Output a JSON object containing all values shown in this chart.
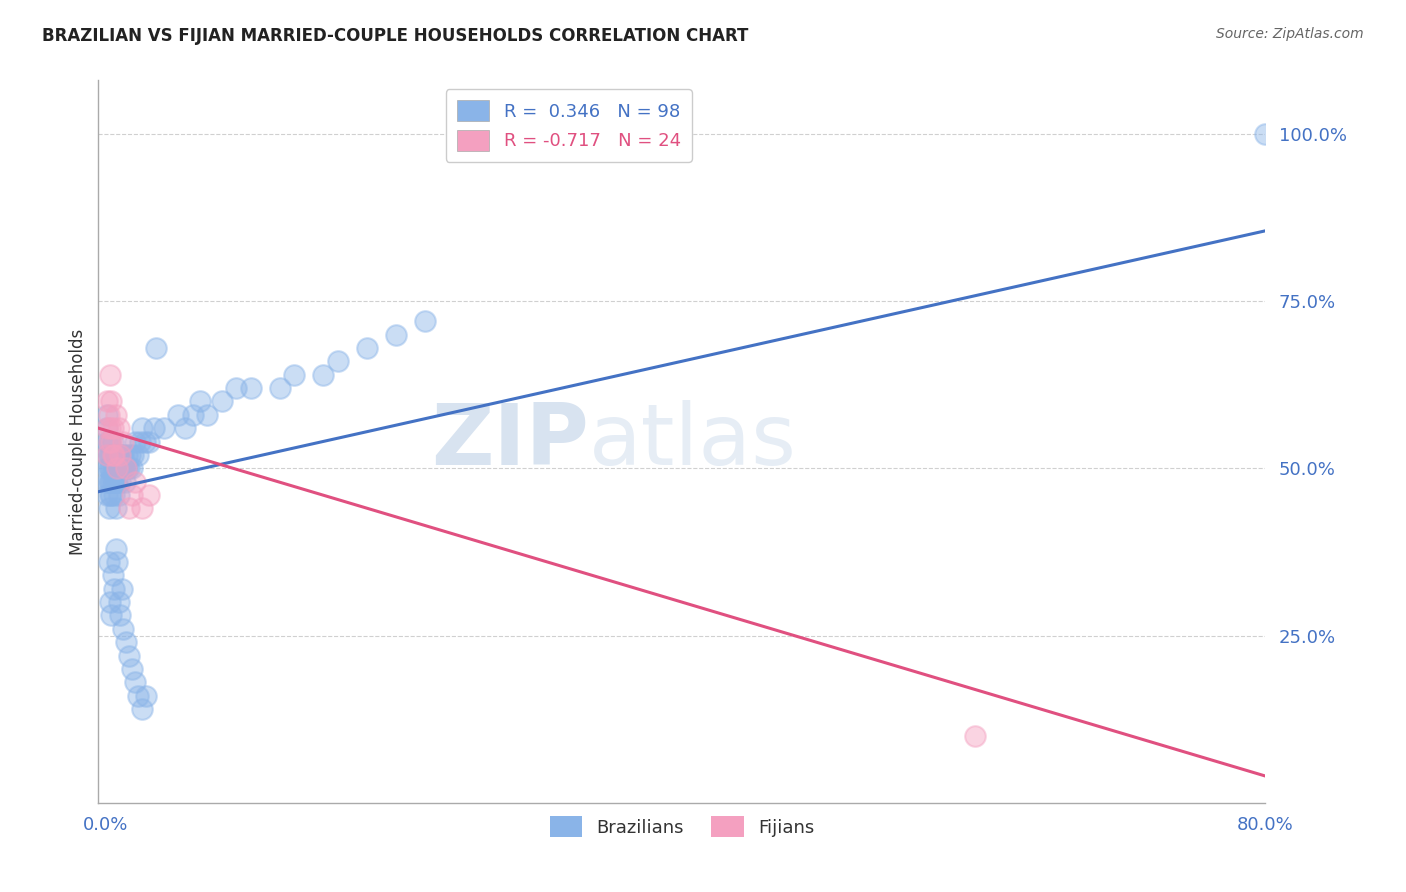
{
  "title": "BRAZILIAN VS FIJIAN MARRIED-COUPLE HOUSEHOLDS CORRELATION CHART",
  "source": "Source: ZipAtlas.com",
  "xlim": [
    -0.005,
    0.8
  ],
  "ylim": [
    0.0,
    1.08
  ],
  "ylabel_ticks": [
    0.25,
    0.5,
    0.75,
    1.0
  ],
  "ylabel_tick_labels": [
    "25.0%",
    "50.0%",
    "75.0%",
    "100.0%"
  ],
  "xtick_positions": [
    0.0,
    0.8
  ],
  "xtick_labels": [
    "0.0%",
    "80.0%"
  ],
  "legend_brazil_label": "R =  0.346   N = 98",
  "legend_fijian_label": "R = -0.717   N = 24",
  "brazil_scatter_color": "#8ab4e8",
  "fijian_scatter_color": "#f4a0c0",
  "brazil_line_color": "#4472c4",
  "fijian_line_color": "#e05080",
  "legend_brazil_color": "#4472c4",
  "legend_fijian_color": "#e05080",
  "trend_line_brazil": {
    "x0": -0.005,
    "y0": 0.465,
    "x1": 0.8,
    "y1": 0.855
  },
  "trend_line_fijian": {
    "x0": -0.005,
    "y0": 0.56,
    "x1": 0.8,
    "y1": 0.04
  },
  "brazil_scatter_x": [
    0.001,
    0.001,
    0.001,
    0.001,
    0.001,
    0.001,
    0.001,
    0.002,
    0.002,
    0.002,
    0.002,
    0.002,
    0.003,
    0.003,
    0.003,
    0.003,
    0.003,
    0.004,
    0.004,
    0.004,
    0.004,
    0.005,
    0.005,
    0.005,
    0.005,
    0.006,
    0.006,
    0.006,
    0.006,
    0.007,
    0.007,
    0.007,
    0.007,
    0.008,
    0.008,
    0.008,
    0.009,
    0.009,
    0.009,
    0.01,
    0.01,
    0.01,
    0.011,
    0.011,
    0.012,
    0.012,
    0.013,
    0.013,
    0.014,
    0.015,
    0.015,
    0.016,
    0.017,
    0.018,
    0.019,
    0.02,
    0.022,
    0.024,
    0.025,
    0.027,
    0.03,
    0.033,
    0.035,
    0.04,
    0.05,
    0.055,
    0.06,
    0.065,
    0.07,
    0.08,
    0.09,
    0.1,
    0.12,
    0.13,
    0.15,
    0.16,
    0.18,
    0.2,
    0.22,
    0.002,
    0.003,
    0.004,
    0.005,
    0.006,
    0.007,
    0.008,
    0.009,
    0.01,
    0.011,
    0.012,
    0.014,
    0.016,
    0.018,
    0.02,
    0.022,
    0.025,
    0.028,
    0.8
  ],
  "brazil_scatter_y": [
    0.5,
    0.52,
    0.48,
    0.54,
    0.46,
    0.56,
    0.58,
    0.5,
    0.52,
    0.48,
    0.54,
    0.44,
    0.5,
    0.52,
    0.48,
    0.46,
    0.54,
    0.5,
    0.48,
    0.52,
    0.46,
    0.5,
    0.52,
    0.48,
    0.54,
    0.5,
    0.48,
    0.52,
    0.46,
    0.5,
    0.52,
    0.48,
    0.44,
    0.5,
    0.52,
    0.48,
    0.5,
    0.52,
    0.46,
    0.5,
    0.52,
    0.48,
    0.5,
    0.52,
    0.5,
    0.52,
    0.5,
    0.48,
    0.5,
    0.5,
    0.52,
    0.5,
    0.52,
    0.5,
    0.52,
    0.54,
    0.52,
    0.54,
    0.56,
    0.54,
    0.54,
    0.56,
    0.68,
    0.56,
    0.58,
    0.56,
    0.58,
    0.6,
    0.58,
    0.6,
    0.62,
    0.62,
    0.62,
    0.64,
    0.64,
    0.66,
    0.68,
    0.7,
    0.72,
    0.36,
    0.3,
    0.28,
    0.34,
    0.32,
    0.38,
    0.36,
    0.3,
    0.28,
    0.32,
    0.26,
    0.24,
    0.22,
    0.2,
    0.18,
    0.16,
    0.14,
    0.16,
    1.0
  ],
  "fijian_scatter_x": [
    0.001,
    0.001,
    0.001,
    0.002,
    0.002,
    0.003,
    0.003,
    0.004,
    0.004,
    0.005,
    0.005,
    0.006,
    0.007,
    0.008,
    0.009,
    0.01,
    0.012,
    0.014,
    0.016,
    0.018,
    0.02,
    0.025,
    0.03,
    0.6
  ],
  "fijian_scatter_y": [
    0.56,
    0.52,
    0.6,
    0.54,
    0.58,
    0.56,
    0.64,
    0.54,
    0.6,
    0.56,
    0.52,
    0.52,
    0.58,
    0.5,
    0.56,
    0.52,
    0.54,
    0.5,
    0.44,
    0.46,
    0.48,
    0.44,
    0.46,
    0.1
  ],
  "watermark_zip": "ZIP",
  "watermark_atlas": "atlas",
  "background_color": "#ffffff",
  "grid_color": "#d0d0d0",
  "title_fontsize": 12,
  "tick_label_color": "#4472c4",
  "ylabel_label": "Married-couple Households",
  "bottom_legend_brazilians": "Brazilians",
  "bottom_legend_fijians": "Fijians"
}
